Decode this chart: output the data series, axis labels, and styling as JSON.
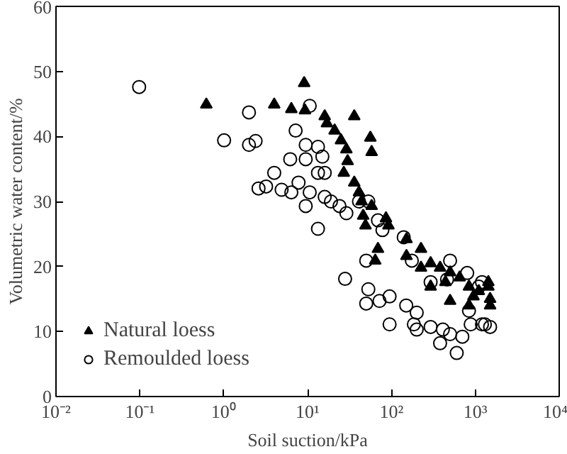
{
  "chart_data": {
    "type": "scatter",
    "xlabel": "Soil suction/kPa",
    "ylabel": "Volumetric water content/%",
    "log": "x",
    "xlim": [
      0.01,
      10000
    ],
    "ylim": [
      0,
      60
    ],
    "xticks": [
      {
        "value": 0.01,
        "label": "10⁻²"
      },
      {
        "value": 0.1,
        "label": "10⁻¹"
      },
      {
        "value": 1,
        "label": "10⁰"
      },
      {
        "value": 10,
        "label": "10¹"
      },
      {
        "value": 100,
        "label": "10²"
      },
      {
        "value": 1000,
        "label": "10³"
      },
      {
        "value": 10000,
        "label": "10⁴"
      }
    ],
    "yticks": [
      0,
      10,
      20,
      30,
      40,
      50,
      60
    ],
    "grid": false,
    "legend": "bottom left",
    "series": [
      {
        "name": "Natural loess",
        "color": "#000000",
        "marker": "triangle",
        "x": [
          0.62,
          4.0,
          6.4,
          9.1,
          9.3,
          16,
          17,
          36,
          56,
          58,
          21,
          25,
          29,
          30,
          27,
          36,
          41,
          44,
          46,
          49,
          58,
          86,
          92,
          69,
          64,
          151,
          225,
          293,
          380,
          500,
          650,
          840,
          1100,
          1430,
          1500,
          1430,
          840,
          500,
          293,
          225,
          440,
          950,
          1500,
          151
        ],
        "values": [
          44.9,
          44.9,
          44.2,
          48.2,
          44.0,
          43.1,
          42,
          43.1,
          39.8,
          37.6,
          40.9,
          39.4,
          38,
          36.2,
          34.4,
          32.9,
          31.4,
          30,
          27.8,
          26.3,
          29.3,
          27.4,
          26.3,
          22.7,
          20.9,
          24.2,
          22.7,
          20.5,
          19.8,
          19.1,
          18.3,
          16.9,
          16.2,
          16.9,
          14,
          17.6,
          14,
          14.7,
          16.9,
          19.8,
          17.6,
          15.4,
          15,
          21.6
        ]
      },
      {
        "name": "Remoulded loess",
        "color": "#000000",
        "marker": "circle",
        "x": [
          0.098,
          1.01,
          2.0,
          2.0,
          2.4,
          2.6,
          3.2,
          4.0,
          4.9,
          6.2,
          6.4,
          7.2,
          7.8,
          9.5,
          9.5,
          9.5,
          10.6,
          10.6,
          13.3,
          13.3,
          13.3,
          15,
          16,
          16,
          19,
          24,
          29,
          28,
          41,
          53,
          50,
          53,
          50,
          69,
          78,
          72,
          95,
          95,
          140,
          150,
          175,
          185,
          200,
          200,
          293,
          293,
          410,
          500,
          460,
          500,
          380,
          600,
          700,
          800,
          840,
          880,
          1100,
          1200,
          1300,
          1500,
          1200
        ],
        "values": [
          47.6,
          39.4,
          43.7,
          38.7,
          39.3,
          32.0,
          32.3,
          34.4,
          31.8,
          36.5,
          31.4,
          40.9,
          32.9,
          38.7,
          36.5,
          29.3,
          44.7,
          31.4,
          38.4,
          34.4,
          25.8,
          36.9,
          34.4,
          30.7,
          30,
          29.3,
          28.2,
          18.1,
          30,
          30,
          20.9,
          16.5,
          14.3,
          27.1,
          25.6,
          14.7,
          15.4,
          11.1,
          24.5,
          14,
          20.9,
          11.1,
          12.9,
          10.3,
          17.6,
          10.7,
          10.3,
          20.9,
          18,
          9.6,
          8.2,
          6.7,
          9.2,
          19,
          13.2,
          11.1,
          16.9,
          17.6,
          11.1,
          10.7,
          11.1
        ]
      }
    ]
  }
}
